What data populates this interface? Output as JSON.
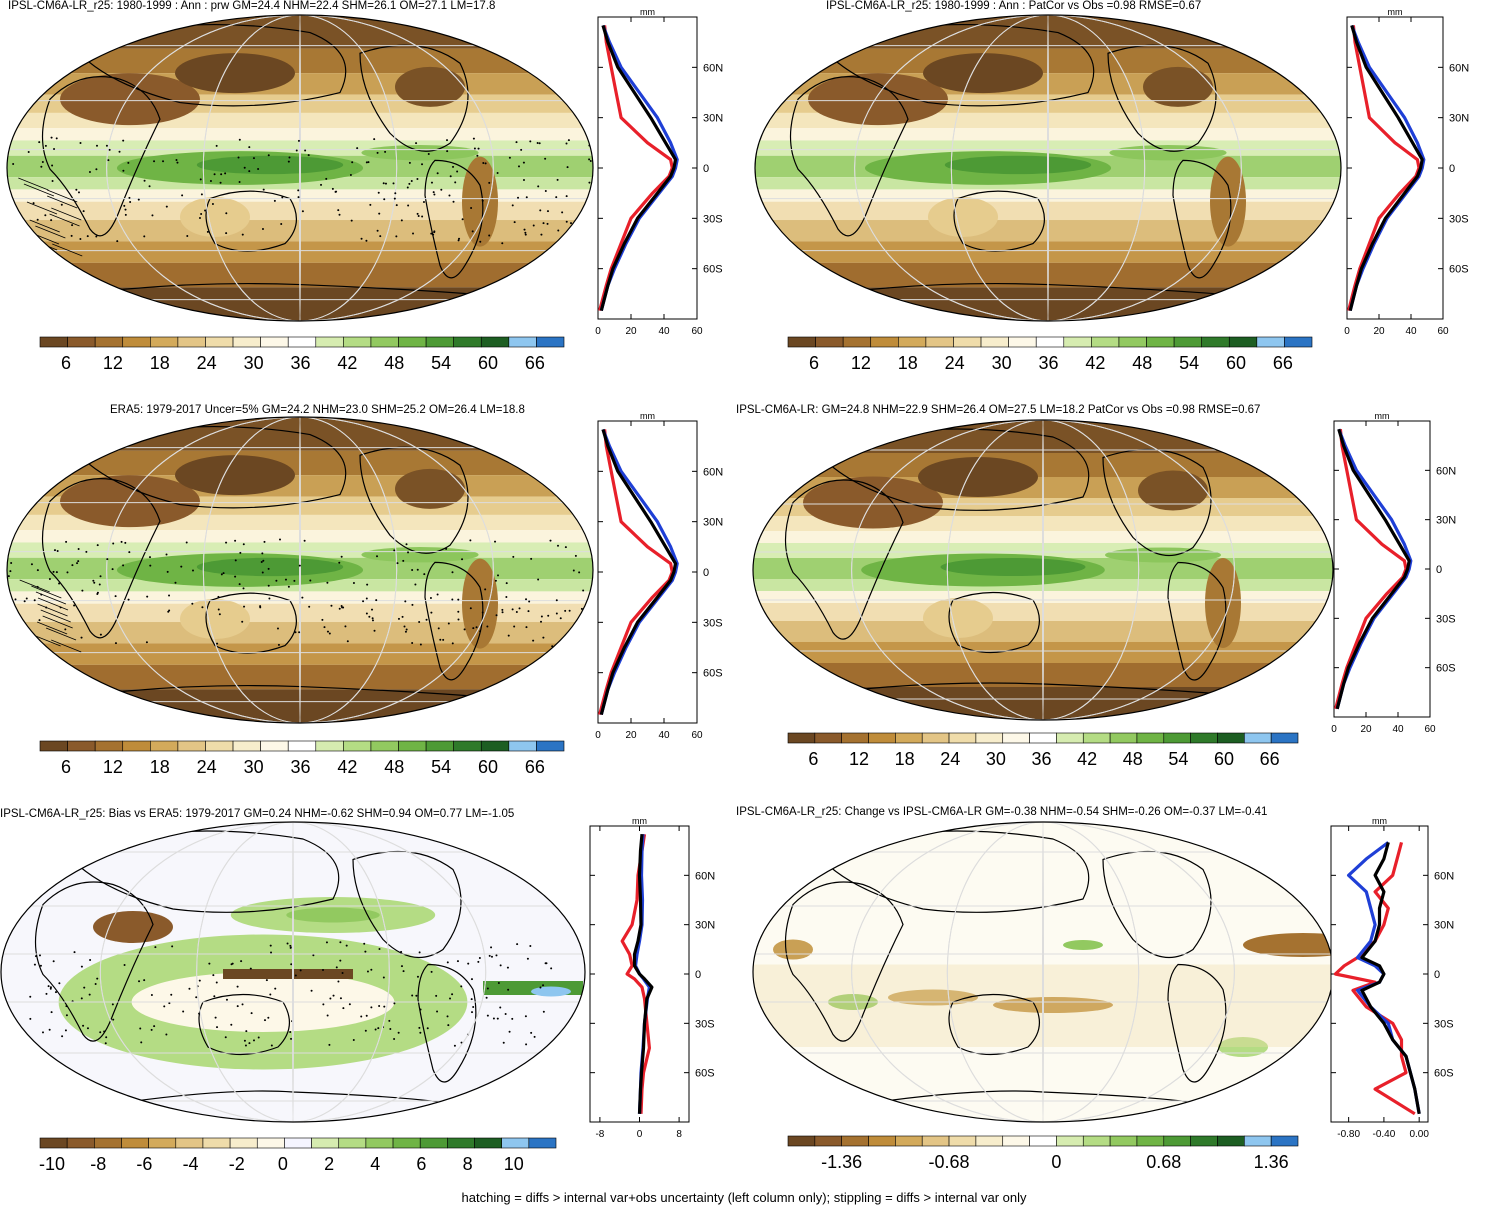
{
  "footnote": "hatching = diffs > internal var+obs uncertainty (left column only); stippling = diffs > internal var only",
  "palettes": {
    "abs": [
      "#6b4722",
      "#8a5a2b",
      "#a57230",
      "#bf8c3a",
      "#d3aa5b",
      "#e3c586",
      "#efdcaa",
      "#f7edcc",
      "#fdf8e8",
      "#ffffff",
      "#d6ecb0",
      "#b4dc84",
      "#92c960",
      "#6fb445",
      "#4d9a35",
      "#2f7a2a",
      "#1d5e22",
      "#8ec6ef",
      "#2b74c4"
    ],
    "bias": [
      "#6b4722",
      "#8a5a2b",
      "#a57230",
      "#bf8c3a",
      "#d3aa5b",
      "#e3c586",
      "#efdcaa",
      "#f7edcc",
      "#fdf8e8",
      "#f5f5ff",
      "#d6ecb0",
      "#b4dc84",
      "#92c960",
      "#6fb445",
      "#4d9a35",
      "#2f7a2a",
      "#1d5e22",
      "#8ec6ef",
      "#2b74c4"
    ],
    "change": [
      "#6b4722",
      "#8a5a2b",
      "#a57230",
      "#bf8c3a",
      "#d3aa5b",
      "#e3c586",
      "#efdcaa",
      "#f7edcc",
      "#fdf8e8",
      "#ffffff",
      "#d6ecb0",
      "#b4dc84",
      "#92c960",
      "#6fb445",
      "#4d9a35",
      "#2f7a2a",
      "#1d5e22",
      "#8ec6ef",
      "#2b74c4"
    ]
  },
  "line_colors": {
    "model": "#000000",
    "obs": "#1f3fd6",
    "other": "#e8202a"
  },
  "panels": [
    {
      "id": "p1",
      "title": "IPSL-CM6A-LR_r25: 1980-1999 : Ann : prw GM=24.4 NHM=22.4 SHM=26.1 OM=27.1 LM=17.8",
      "map_style": "abs",
      "colorbar": {
        "palette": "abs",
        "labels": [
          "6",
          "12",
          "18",
          "24",
          "30",
          "36",
          "42",
          "48",
          "54",
          "60",
          "66"
        ]
      },
      "profile": {
        "unit": "mm",
        "xticks": [
          "0",
          "20",
          "40",
          "60"
        ],
        "xlim": [
          0,
          60
        ],
        "yticks": [
          "60N",
          "30N",
          "0",
          "30S",
          "60S"
        ]
      }
    },
    {
      "id": "p2",
      "title": "IPSL-CM6A-LR_r25: 1980-1999 : Ann : PatCor vs Obs =0.98 RMSE=0.67",
      "map_style": "abs",
      "colorbar": {
        "palette": "abs",
        "labels": [
          "6",
          "12",
          "18",
          "24",
          "30",
          "36",
          "42",
          "48",
          "54",
          "60",
          "66"
        ]
      },
      "profile": {
        "unit": "mm",
        "xticks": [
          "0",
          "20",
          "40",
          "60"
        ],
        "xlim": [
          0,
          60
        ],
        "yticks": [
          "60N",
          "30N",
          "0",
          "30S",
          "60S"
        ]
      }
    },
    {
      "id": "p3",
      "title": "ERA5: 1979-2017 Uncer=5% GM=24.2 NHM=23.0 SHM=25.2 OM=26.4 LM=18.8",
      "map_style": "abs",
      "colorbar": {
        "palette": "abs",
        "labels": [
          "6",
          "12",
          "18",
          "24",
          "30",
          "36",
          "42",
          "48",
          "54",
          "60",
          "66"
        ]
      },
      "profile": {
        "unit": "mm",
        "xticks": [
          "0",
          "20",
          "40",
          "60"
        ],
        "xlim": [
          0,
          60
        ],
        "yticks": [
          "60N",
          "30N",
          "0",
          "30S",
          "60S"
        ]
      }
    },
    {
      "id": "p4",
      "title": "IPSL-CM6A-LR: GM=24.8 NHM=22.9 SHM=26.4 OM=27.5 LM=18.2 PatCor vs Obs =0.98 RMSE=0.67",
      "map_style": "abs",
      "colorbar": {
        "palette": "abs",
        "labels": [
          "6",
          "12",
          "18",
          "24",
          "30",
          "36",
          "42",
          "48",
          "54",
          "60",
          "66"
        ]
      },
      "profile": {
        "unit": "mm",
        "xticks": [
          "0",
          "20",
          "40",
          "60"
        ],
        "xlim": [
          0,
          60
        ],
        "yticks": [
          "60N",
          "30N",
          "0",
          "30S",
          "60S"
        ]
      }
    },
    {
      "id": "p5",
      "title": "IPSL-CM6A-LR_r25: Bias vs ERA5: 1979-2017 GM=0.24 NHM=-0.62 SHM=0.94 OM=0.77 LM=-1.05",
      "map_style": "bias",
      "colorbar": {
        "palette": "bias",
        "labels": [
          "-10",
          "-8",
          "-6",
          "-4",
          "-2",
          "0",
          "2",
          "4",
          "6",
          "8",
          "10"
        ]
      },
      "profile": {
        "unit": "mm",
        "xticks": [
          "-8",
          "0",
          "8"
        ],
        "xlim": [
          -10,
          10
        ],
        "yticks": [
          "60N",
          "30N",
          "0",
          "30S",
          "60S"
        ]
      }
    },
    {
      "id": "p6",
      "title": "IPSL-CM6A-LR_r25: Change vs IPSL-CM6A-LR GM=-0.38 NHM=-0.54 SHM=-0.26 OM=-0.37 LM=-0.41",
      "map_style": "change",
      "colorbar": {
        "palette": "change",
        "labels": [
          "-1.36",
          "-0.68",
          "0",
          "0.68",
          "1.36"
        ]
      },
      "profile": {
        "unit": "mm",
        "xticks": [
          "-0.80",
          "-0.40",
          "0.00"
        ],
        "xlim": [
          -1.0,
          0.1
        ],
        "yticks": [
          "60N",
          "30N",
          "0",
          "30S",
          "60S"
        ]
      }
    }
  ],
  "chart_data": [
    {
      "type": "line",
      "title": "IPSL-CM6A-LR_r25: 1980-1999 : Ann : prw GM=24.4 NHM=22.4 SHM=26.1 OM=27.1 LM=17.8",
      "xlabel": "mm",
      "xlim": [
        0,
        60
      ],
      "ylim": [
        -90,
        90
      ],
      "lat": [
        -85,
        -70,
        -60,
        -45,
        -30,
        -15,
        -5,
        0,
        5,
        15,
        30,
        45,
        60,
        75,
        85
      ],
      "series": [
        {
          "color": "black",
          "values": [
            2,
            6,
            9,
            16,
            24,
            36,
            44,
            46,
            47,
            41,
            32,
            22,
            12,
            6,
            3
          ]
        },
        {
          "color": "blue",
          "values": [
            2,
            6,
            10,
            17,
            25,
            37,
            45,
            47,
            48,
            44,
            36,
            25,
            14,
            7,
            3
          ]
        },
        {
          "color": "red",
          "values": [
            1,
            5,
            8,
            14,
            20,
            33,
            43,
            45,
            44,
            30,
            14,
            11,
            8,
            5,
            4
          ]
        }
      ]
    },
    {
      "type": "line",
      "title": "IPSL-CM6A-LR_r25: 1980-1999 : Ann : PatCor vs Obs =0.98 RMSE=0.67",
      "xlabel": "mm",
      "xlim": [
        0,
        60
      ],
      "ylim": [
        -90,
        90
      ],
      "lat": [
        -85,
        -70,
        -60,
        -45,
        -30,
        -15,
        -5,
        0,
        5,
        15,
        30,
        45,
        60,
        75,
        85
      ],
      "series": [
        {
          "color": "black",
          "values": [
            2,
            6,
            9,
            16,
            24,
            36,
            44,
            46,
            47,
            41,
            32,
            22,
            12,
            6,
            3
          ]
        },
        {
          "color": "blue",
          "values": [
            2,
            6,
            10,
            17,
            25,
            37,
            45,
            47,
            48,
            44,
            36,
            25,
            14,
            7,
            3
          ]
        },
        {
          "color": "red",
          "values": [
            1,
            5,
            8,
            14,
            20,
            33,
            43,
            45,
            44,
            30,
            14,
            11,
            8,
            5,
            4
          ]
        }
      ]
    },
    {
      "type": "line",
      "title": "ERA5: 1979-2017 Uncer=5% GM=24.2 NHM=23.0 SHM=25.2 OM=26.4 LM=18.8",
      "xlabel": "mm",
      "xlim": [
        0,
        60
      ],
      "ylim": [
        -90,
        90
      ],
      "lat": [
        -85,
        -70,
        -60,
        -45,
        -30,
        -15,
        -5,
        0,
        5,
        15,
        30,
        45,
        60,
        75,
        85
      ],
      "series": [
        {
          "color": "black",
          "values": [
            2,
            6,
            9,
            16,
            24,
            36,
            44,
            46,
            47,
            41,
            32,
            22,
            12,
            6,
            3
          ]
        },
        {
          "color": "blue",
          "values": [
            2,
            6,
            10,
            17,
            25,
            37,
            45,
            47,
            48,
            44,
            36,
            25,
            14,
            7,
            3
          ]
        },
        {
          "color": "red",
          "values": [
            1,
            5,
            8,
            14,
            20,
            33,
            43,
            45,
            44,
            30,
            14,
            11,
            8,
            5,
            4
          ]
        }
      ]
    },
    {
      "type": "line",
      "title": "IPSL-CM6A-LR: GM=24.8 NHM=22.9 SHM=26.4 OM=27.5 LM=18.2 PatCor vs Obs =0.98 RMSE=0.67",
      "xlabel": "mm",
      "xlim": [
        0,
        60
      ],
      "ylim": [
        -90,
        90
      ],
      "lat": [
        -85,
        -70,
        -60,
        -45,
        -30,
        -15,
        -5,
        0,
        5,
        15,
        30,
        45,
        60,
        75,
        85
      ],
      "series": [
        {
          "color": "black",
          "values": [
            2,
            6,
            9,
            16,
            24,
            36,
            44,
            46,
            47,
            41,
            32,
            22,
            12,
            6,
            3
          ]
        },
        {
          "color": "blue",
          "values": [
            2,
            6,
            10,
            17,
            25,
            37,
            45,
            47,
            48,
            44,
            36,
            25,
            14,
            7,
            3
          ]
        },
        {
          "color": "red",
          "values": [
            1,
            5,
            8,
            14,
            20,
            33,
            43,
            45,
            44,
            30,
            14,
            11,
            8,
            5,
            4
          ]
        }
      ]
    },
    {
      "type": "line",
      "title": "IPSL-CM6A-LR_r25: Bias vs ERA5: 1979-2017 GM=0.24 NHM=-0.62 SHM=0.94 OM=0.77 LM=-1.05",
      "xlabel": "mm",
      "xlim": [
        -10,
        10
      ],
      "ylim": [
        -90,
        90
      ],
      "lat": [
        -85,
        -70,
        -60,
        -45,
        -30,
        -15,
        -8,
        -3,
        0,
        5,
        12,
        20,
        30,
        45,
        60,
        75,
        85
      ],
      "series": [
        {
          "color": "black",
          "values": [
            0,
            0.2,
            0.4,
            0.8,
            1.0,
            1.5,
            2.5,
            1.0,
            0.0,
            -1.0,
            -1.0,
            -0.3,
            0.3,
            0.2,
            0.0,
            0.2,
            0.5
          ]
        },
        {
          "color": "blue",
          "values": [
            0,
            0.2,
            0.3,
            0.7,
            1.0,
            1.6,
            2.0,
            0.8,
            0.0,
            -0.8,
            -0.5,
            0.0,
            0.5,
            0.6,
            0.4,
            0.5,
            0.7
          ]
        },
        {
          "color": "red",
          "values": [
            0.3,
            0.5,
            0.8,
            2.0,
            1.5,
            1.0,
            0.5,
            -1.0,
            -2.5,
            -1.5,
            -2.0,
            -3.5,
            -1.5,
            -0.5,
            -0.3,
            0.5,
            1.0
          ]
        }
      ]
    },
    {
      "type": "line",
      "title": "IPSL-CM6A-LR_r25: Change vs IPSL-CM6A-LR GM=-0.38 NHM=-0.54 SHM=-0.26 OM=-0.37 LM=-0.41",
      "xlabel": "mm",
      "xlim": [
        -1.0,
        0.1
      ],
      "ylim": [
        -90,
        90
      ],
      "lat": [
        -85,
        -70,
        -60,
        -50,
        -40,
        -30,
        -20,
        -10,
        -5,
        0,
        5,
        10,
        20,
        30,
        40,
        50,
        60,
        70,
        80
      ],
      "series": [
        {
          "color": "black",
          "values": [
            0,
            -0.05,
            -0.1,
            -0.15,
            -0.3,
            -0.4,
            -0.55,
            -0.65,
            -0.45,
            -0.4,
            -0.45,
            -0.65,
            -0.5,
            -0.45,
            -0.45,
            -0.4,
            -0.5,
            -0.4,
            -0.35
          ]
        },
        {
          "color": "blue",
          "values": [
            0,
            -0.05,
            -0.1,
            -0.15,
            -0.3,
            -0.35,
            -0.55,
            -0.7,
            -0.45,
            -0.4,
            -0.5,
            -0.7,
            -0.55,
            -0.5,
            -0.55,
            -0.6,
            -0.8,
            -0.6,
            -0.35
          ]
        },
        {
          "color": "red",
          "values": [
            -0.05,
            -0.5,
            -0.15,
            -0.2,
            -0.2,
            -0.3,
            -0.6,
            -0.75,
            -0.5,
            -0.95,
            -0.85,
            -0.7,
            -0.5,
            -0.4,
            -0.35,
            -0.5,
            -0.3,
            -0.25,
            -0.2
          ]
        }
      ]
    }
  ]
}
